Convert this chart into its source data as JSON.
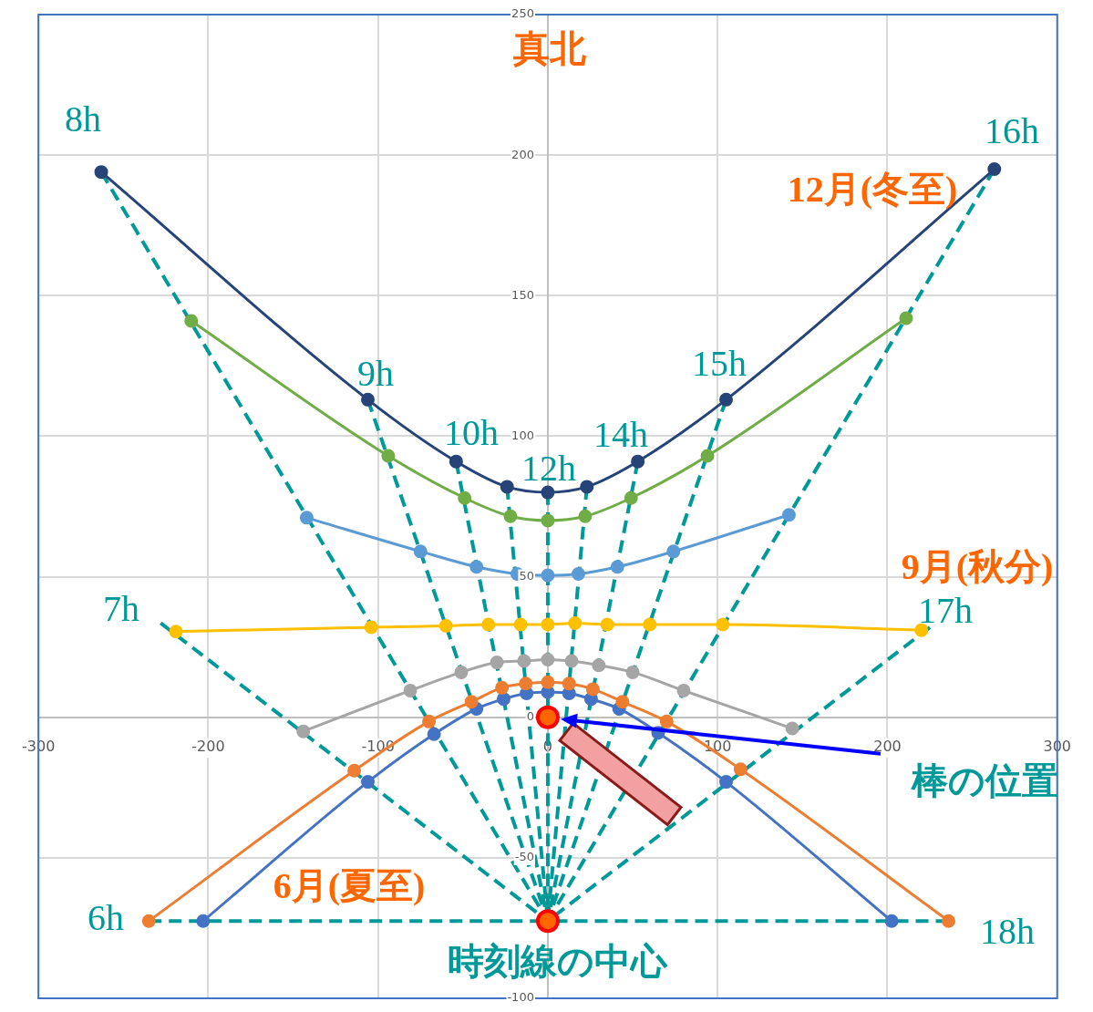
{
  "chart_data": {
    "type": "line",
    "xlim": [
      -300,
      300
    ],
    "xticks": [
      -300,
      -200,
      -100,
      0,
      100,
      200,
      300
    ],
    "ylim": [
      -100,
      250
    ],
    "yticks": [
      -100,
      -50,
      0,
      50,
      100,
      150,
      200,
      250
    ],
    "grid": true,
    "legend": false,
    "series": [
      {
        "color": "#264478",
        "marker": "circle",
        "x": [
          -263,
          -106,
          -54,
          -24,
          0,
          23,
          53,
          105,
          263
        ],
        "values": [
          194,
          113,
          91,
          82,
          80,
          82,
          91,
          113,
          195
        ]
      },
      {
        "color": "#70ad47",
        "marker": "circle",
        "x": [
          -210,
          -94,
          -49,
          -22,
          0,
          22,
          49,
          94,
          211
        ],
        "values": [
          141,
          93,
          78,
          71.5,
          70,
          71.5,
          78,
          93,
          142
        ]
      },
      {
        "color": "#5b9bd5",
        "marker": "circle",
        "x": [
          -142,
          -75,
          -42,
          -18,
          0,
          18,
          41,
          74,
          142
        ],
        "values": [
          71,
          59,
          53.5,
          51,
          50.5,
          51,
          53.5,
          59,
          72
        ]
      },
      {
        "color": "#ffc000",
        "marker": "circle",
        "x": [
          -219,
          -104,
          -60,
          -35,
          -16,
          0,
          16,
          35,
          60,
          103,
          220
        ],
        "values": [
          30.5,
          32,
          32.5,
          33,
          33,
          33,
          33.5,
          33,
          33,
          33,
          31
        ]
      },
      {
        "color": "#a5a5a5",
        "marker": "circle",
        "x": [
          -144,
          -81,
          -51,
          -30,
          -14,
          0,
          14,
          30,
          50,
          80,
          144
        ],
        "values": [
          -5,
          9.5,
          16,
          19.5,
          20,
          20.5,
          20,
          18.5,
          16,
          9.5,
          -4
        ]
      },
      {
        "color": "#ed7d31",
        "marker": "circle",
        "x": [
          -235,
          -114,
          -70,
          -45,
          -27,
          -13,
          0,
          12.5,
          26.5,
          44,
          70,
          113.5,
          236
        ],
        "values": [
          -72.5,
          -19,
          -1.5,
          5.5,
          10.5,
          12,
          12.5,
          12,
          10,
          5.5,
          -1.5,
          -18.5,
          -72.5
        ]
      },
      {
        "color": "#4472c4",
        "marker": "circle",
        "x": [
          -203,
          -106,
          -67,
          -42,
          -26,
          -12.5,
          0,
          12.5,
          25.5,
          42,
          65,
          105,
          202.5
        ],
        "values": [
          -72.5,
          -23,
          -6,
          3,
          6.5,
          8.5,
          9,
          8.5,
          6.5,
          3,
          -5.5,
          -23,
          -72.5
        ]
      },
      {
        "type": "line",
        "color": "#009999",
        "marker": "none",
        "line_style": "dashed",
        "x": [
          -235,
          0
        ],
        "values": [
          -72.5,
          -72.5
        ]
      },
      {
        "type": "line",
        "color": "#009999",
        "marker": "none",
        "line_style": "dashed",
        "x": [
          -228,
          0
        ],
        "values": [
          33.5,
          -72.5
        ]
      },
      {
        "type": "line",
        "color": "#009999",
        "marker": "none",
        "line_style": "dashed",
        "x": [
          -263,
          0
        ],
        "values": [
          194,
          -72.5
        ]
      },
      {
        "type": "line",
        "color": "#009999",
        "marker": "none",
        "line_style": "dashed",
        "x": [
          -106,
          0
        ],
        "values": [
          113,
          -72.5
        ]
      },
      {
        "type": "line",
        "color": "#009999",
        "marker": "none",
        "line_style": "dashed",
        "x": [
          -54,
          0
        ],
        "values": [
          91,
          -72.5
        ]
      },
      {
        "type": "line",
        "color": "#009999",
        "marker": "none",
        "line_style": "dashed",
        "x": [
          -24,
          0
        ],
        "values": [
          82,
          -72.5
        ]
      },
      {
        "type": "line",
        "color": "#009999",
        "marker": "none",
        "line_style": "dashed",
        "x": [
          0,
          0
        ],
        "values": [
          80,
          -72.5
        ]
      },
      {
        "type": "line",
        "color": "#009999",
        "marker": "none",
        "line_style": "dashed",
        "x": [
          23,
          0
        ],
        "values": [
          82,
          -72.5
        ]
      },
      {
        "type": "line",
        "color": "#009999",
        "marker": "none",
        "line_style": "dashed",
        "x": [
          53,
          0
        ],
        "values": [
          91,
          -72.5
        ]
      },
      {
        "type": "line",
        "color": "#009999",
        "marker": "none",
        "line_style": "dashed",
        "x": [
          105,
          0
        ],
        "values": [
          113,
          -72.5
        ]
      },
      {
        "type": "line",
        "color": "#009999",
        "marker": "none",
        "line_style": "dashed",
        "x": [
          263,
          0
        ],
        "values": [
          195,
          -72.5
        ]
      },
      {
        "type": "line",
        "color": "#009999",
        "marker": "none",
        "line_style": "dashed",
        "x": [
          225,
          0
        ],
        "values": [
          32,
          -72.5
        ]
      },
      {
        "type": "line",
        "color": "#009999",
        "marker": "none",
        "line_style": "dashed",
        "x": [
          236,
          0
        ],
        "values": [
          -72.5,
          -72.5
        ]
      },
      {
        "type": "scatter",
        "color": "#ff0000",
        "marker": "circle",
        "x": [
          0,
          0
        ],
        "values": [
          0,
          -72.5
        ]
      }
    ],
    "annotations": [
      "真北",
      "8h",
      "16h",
      "9h",
      "10h",
      "12h",
      "14h",
      "15h",
      "7h",
      "17h",
      "6h",
      "18h",
      "12月(冬至)",
      "9月(秋分)",
      "6月(夏至)",
      "棒の位置",
      "時刻線の中心"
    ]
  }
}
